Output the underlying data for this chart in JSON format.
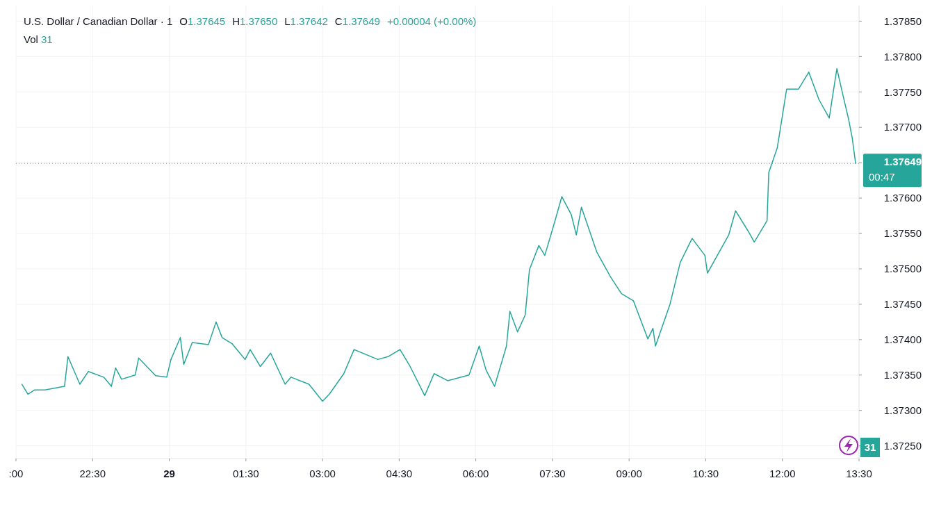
{
  "chart_data": {
    "type": "line",
    "title": "U.S. Dollar / Canadian Dollar · 1",
    "annotations": [
      "O1.37645",
      "H1.37650",
      "L1.37642",
      "C1.37649",
      "+0.00004 (+0.00%)",
      "Vol 31",
      "00:47",
      "31"
    ],
    "x": [
      "--05-28T21:07",
      "--05-28T21:14",
      "--05-28T21:22",
      "--05-28T21:34",
      "--05-28T21:57",
      "--05-28T22:01",
      "--05-28T22:15",
      "--05-28T22:25",
      "--05-28T22:43",
      "--05-28T22:52",
      "--05-28T22:57",
      "--05-28T23:04",
      "--05-28T23:20",
      "--05-28T23:24",
      "--05-28T23:44",
      "--05-28T23:57",
      "--05-29T00:02",
      "--05-29T00:13",
      "--05-29T00:17",
      "--05-29T00:27",
      "--05-29T00:46",
      "--05-29T00:55",
      "--05-29T01:02",
      "--05-29T01:14",
      "--05-29T01:29",
      "--05-29T01:35",
      "--05-29T01:47",
      "--05-29T01:59",
      "--05-29T02:16",
      "--05-29T02:23",
      "--05-29T02:44",
      "--05-29T03:00",
      "--05-29T03:08",
      "--05-29T03:25",
      "--05-29T03:37",
      "--05-29T04:05",
      "--05-29T04:17",
      "--05-29T04:31",
      "--05-29T04:42",
      "--05-29T05:00",
      "--05-29T05:11",
      "--05-29T05:27",
      "--05-29T05:52",
      "--05-29T06:04",
      "--05-29T06:12",
      "--05-29T06:22",
      "--05-29T06:36",
      "--05-29T06:40",
      "--05-29T06:49",
      "--05-29T06:58",
      "--05-29T07:03",
      "--05-29T07:14",
      "--05-29T07:21",
      "--05-29T07:33",
      "--05-29T07:41",
      "--05-29T07:52",
      "--05-29T07:58",
      "--05-29T08:04",
      "--05-29T08:22",
      "--05-29T08:38",
      "--05-29T08:51",
      "--05-29T09:05",
      "--05-29T09:22",
      "--05-29T09:28",
      "--05-29T09:31",
      "--05-29T09:48",
      "--05-29T10:00",
      "--05-29T10:14",
      "--05-29T10:29",
      "--05-29T10:32",
      "--05-29T10:57",
      "--05-29T11:05",
      "--05-29T11:20",
      "--05-29T11:27",
      "--05-29T11:42",
      "--05-29T11:44",
      "--05-29T11:54",
      "--05-29T12:05",
      "--05-29T12:19",
      "--05-29T12:31",
      "--05-29T12:43",
      "--05-29T12:55",
      "--05-29T13:04",
      "--05-29T13:11",
      "--05-29T13:18",
      "--05-29T13:22",
      "--05-29T13:26"
    ],
    "series": [
      {
        "color": "#26a69a",
        "values": [
          1.37337,
          1.37323,
          1.37329,
          1.37329,
          1.37334,
          1.37376,
          1.37337,
          1.37355,
          1.37347,
          1.37334,
          1.3736,
          1.37344,
          1.3735,
          1.37374,
          1.37349,
          1.37347,
          1.37372,
          1.37403,
          1.37365,
          1.37396,
          1.37393,
          1.37425,
          1.37403,
          1.37394,
          1.37372,
          1.37386,
          1.37362,
          1.37381,
          1.37337,
          1.37347,
          1.37337,
          1.37313,
          1.37323,
          1.37352,
          1.37386,
          1.37372,
          1.37376,
          1.37386,
          1.37364,
          1.37321,
          1.37352,
          1.37342,
          1.3735,
          1.37391,
          1.37357,
          1.37334,
          1.37391,
          1.3744,
          1.37411,
          1.37435,
          1.37499,
          1.37533,
          1.37519,
          1.37568,
          1.37602,
          1.37577,
          1.37548,
          1.37587,
          1.37524,
          1.37489,
          1.37465,
          1.37455,
          1.37401,
          1.37416,
          1.37391,
          1.3745,
          1.37509,
          1.37543,
          1.37519,
          1.37494,
          1.37548,
          1.37582,
          1.37553,
          1.37538,
          1.37568,
          1.37636,
          1.37671,
          1.37754,
          1.37754,
          1.37778,
          1.37739,
          1.37713,
          1.37783,
          1.37746,
          1.3771,
          1.37685,
          1.37649
        ]
      }
    ],
    "xlim": [
      "--05-28T21:00",
      "--05-29T13:30"
    ],
    "xticks": [
      {
        "value": "--05-28T21:00",
        "label": ":00"
      },
      {
        "value": "--05-28T22:30",
        "label": "22:30"
      },
      {
        "value": "--05-29T00:00",
        "label": "29"
      },
      {
        "value": "--05-29T01:30",
        "label": "01:30"
      },
      {
        "value": "--05-29T03:00",
        "label": "03:00"
      },
      {
        "value": "--05-29T04:30",
        "label": "04:30"
      },
      {
        "value": "--05-29T06:00",
        "label": "06:00"
      },
      {
        "value": "--05-29T07:30",
        "label": "07:30"
      },
      {
        "value": "--05-29T09:00",
        "label": "09:00"
      },
      {
        "value": "--05-29T10:30",
        "label": "10:30"
      },
      {
        "value": "--05-29T12:00",
        "label": "12:00"
      },
      {
        "value": "--05-29T13:30",
        "label": "13:30"
      }
    ],
    "ylim": [
      1.37232,
      1.37872
    ],
    "yticks": [
      {
        "value": 1.3725,
        "label": "1.37250"
      },
      {
        "value": 1.373,
        "label": "1.37300"
      },
      {
        "value": 1.3735,
        "label": "1.37350"
      },
      {
        "value": 1.374,
        "label": "1.37400"
      },
      {
        "value": 1.3745,
        "label": "1.37450"
      },
      {
        "value": 1.375,
        "label": "1.37500"
      },
      {
        "value": 1.3755,
        "label": "1.37550"
      },
      {
        "value": 1.376,
        "label": "1.37600"
      },
      {
        "value": 1.3765,
        "label": null
      },
      {
        "value": 1.377,
        "label": "1.37700"
      },
      {
        "value": 1.3775,
        "label": "1.37750"
      },
      {
        "value": 1.378,
        "label": "1.37800"
      },
      {
        "value": 1.3785,
        "label": "1.37850"
      }
    ],
    "ref_lines": [
      {
        "axis": "y",
        "value": 1.37649,
        "label": "1.37649",
        "color": "#26a69a",
        "line_style": "dotted"
      }
    ],
    "grid": true,
    "marker": "none",
    "line_style": "solid"
  }
}
